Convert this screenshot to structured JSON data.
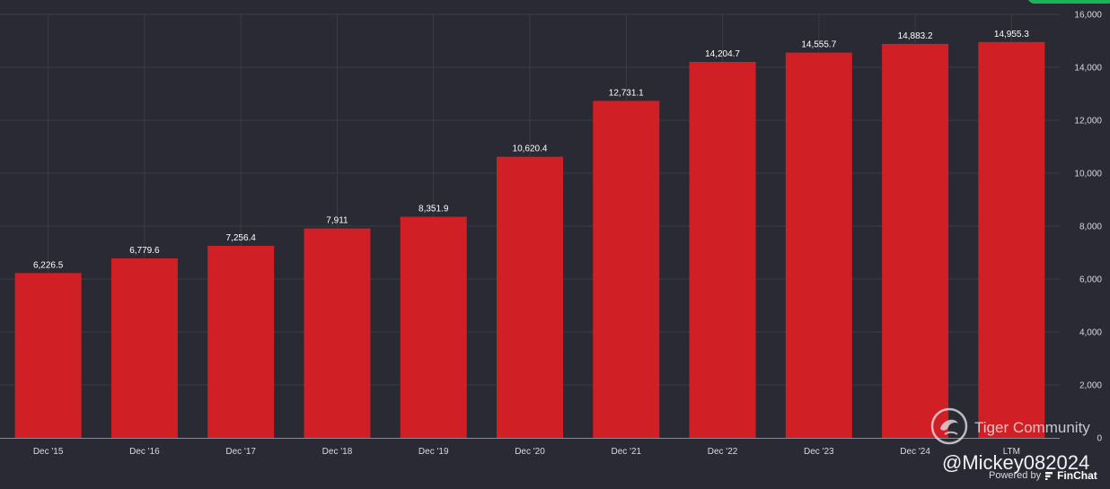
{
  "chart_data": {
    "type": "bar",
    "categories": [
      "Dec '15",
      "Dec '16",
      "Dec '17",
      "Dec '18",
      "Dec '19",
      "Dec '20",
      "Dec '21",
      "Dec '22",
      "Dec '23",
      "Dec '24",
      "LTM"
    ],
    "values": [
      6226.5,
      6779.6,
      7256.4,
      7911,
      8351.9,
      10620.4,
      12731.1,
      14204.7,
      14555.7,
      14883.2,
      14955.3
    ],
    "data_labels": [
      "6,226.5",
      "6,779.6",
      "7,256.4",
      "7,911",
      "8,351.9",
      "10,620.4",
      "12,731.1",
      "14,204.7",
      "14,555.7",
      "14,883.2",
      "14,955.3"
    ],
    "y_ticks": [
      0,
      2000,
      4000,
      6000,
      8000,
      10000,
      12000,
      14000,
      16000
    ],
    "y_tick_labels": [
      "0",
      "2,000",
      "4,000",
      "6,000",
      "8,000",
      "10,000",
      "12,000",
      "14,000",
      "16,000"
    ],
    "ylim": [
      0,
      16000
    ],
    "y_axis_side": "right",
    "grid": true,
    "colors": {
      "bar": "#d01f25",
      "background": "#292a33",
      "grid": "#3b3c46"
    }
  },
  "watermark": {
    "name": "Tiger Community",
    "handle": "@Mickey082024"
  },
  "footer": {
    "powered_by": "Powered by",
    "brand": "FinChat"
  }
}
